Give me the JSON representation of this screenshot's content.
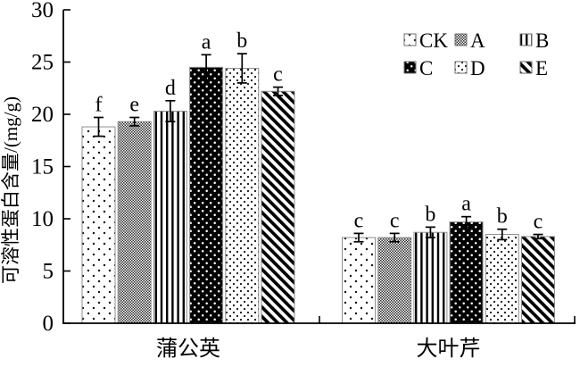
{
  "figure": {
    "background": "#ffffff",
    "ink_color": "#000000",
    "bar_outline_color": "#8f8f8f"
  },
  "chart_data": {
    "type": "bar",
    "title": "",
    "xlabel": "",
    "ylabel": "可溶性蛋白含量/(mg/g)",
    "ylim": [
      0,
      30
    ],
    "yticks": [
      0,
      5,
      10,
      15,
      20,
      25,
      30
    ],
    "grid": false,
    "legend_position": "top-right",
    "legend_rows": [
      [
        "CK",
        "A",
        "B"
      ],
      [
        "C",
        "D",
        "E"
      ]
    ],
    "categories": [
      "蒲公英",
      "大叶芹"
    ],
    "series": [
      {
        "name": "CK",
        "pattern": "dots-sparse",
        "values": [
          18.8,
          8.2
        ],
        "errors": [
          0.9,
          0.4
        ],
        "sig_letters": [
          "f",
          "c"
        ]
      },
      {
        "name": "A",
        "pattern": "checker-fine",
        "values": [
          19.3,
          8.2
        ],
        "errors": [
          0.4,
          0.4
        ],
        "sig_letters": [
          "e",
          "c"
        ]
      },
      {
        "name": "B",
        "pattern": "vertical-lines",
        "values": [
          20.3,
          8.7
        ],
        "errors": [
          1.0,
          0.5
        ],
        "sig_letters": [
          "d",
          "b"
        ]
      },
      {
        "name": "C",
        "pattern": "black-white-dots",
        "values": [
          24.5,
          9.7
        ],
        "errors": [
          1.2,
          0.5
        ],
        "sig_letters": [
          "a",
          "a"
        ]
      },
      {
        "name": "D",
        "pattern": "dots-dense",
        "values": [
          24.4,
          8.5
        ],
        "errors": [
          1.4,
          0.5
        ],
        "sig_letters": [
          "b",
          "b"
        ]
      },
      {
        "name": "E",
        "pattern": "diagonal-stripes",
        "values": [
          22.2,
          8.3
        ],
        "errors": [
          0.4,
          0.2
        ],
        "sig_letters": [
          "c",
          "c"
        ]
      }
    ]
  }
}
